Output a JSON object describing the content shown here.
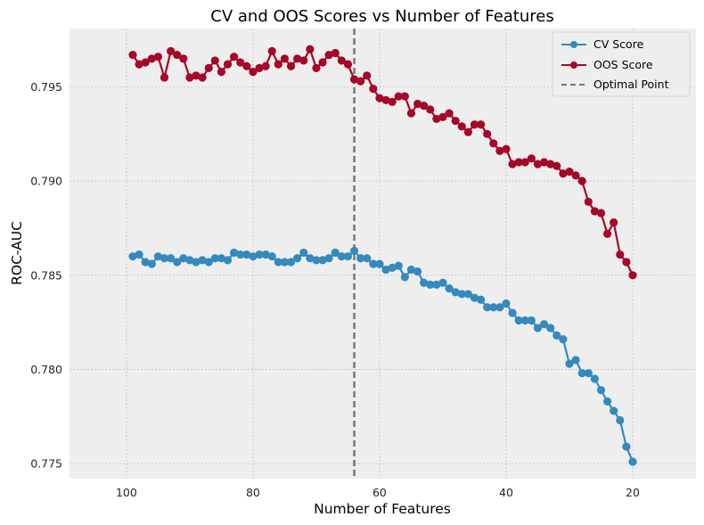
{
  "chart_data": {
    "type": "line",
    "title": "CV and OOS Scores vs Number of Features",
    "xlabel": "Number of Features",
    "ylabel": "ROC-AUC",
    "xlim": [
      109,
      10
    ],
    "ylim": [
      0.7742,
      0.7981
    ],
    "xticks": [
      100,
      80,
      60,
      40,
      20
    ],
    "yticks": [
      0.775,
      0.78,
      0.785,
      0.79,
      0.795
    ],
    "ytick_labels": [
      "0.775",
      "0.780",
      "0.785",
      "0.790",
      "0.795"
    ],
    "xtick_labels": [
      "100",
      "80",
      "60",
      "40",
      "20"
    ],
    "grid": true,
    "legend_position": "top-right",
    "x": [
      99,
      98,
      97,
      96,
      95,
      94,
      93,
      92,
      91,
      90,
      89,
      88,
      87,
      86,
      85,
      84,
      83,
      82,
      81,
      80,
      79,
      78,
      77,
      76,
      75,
      74,
      73,
      72,
      71,
      70,
      69,
      68,
      67,
      66,
      65,
      64,
      63,
      62,
      61,
      60,
      59,
      58,
      57,
      56,
      55,
      54,
      53,
      52,
      51,
      50,
      49,
      48,
      47,
      46,
      45,
      44,
      43,
      42,
      41,
      40,
      39,
      38,
      37,
      36,
      35,
      34,
      33,
      32,
      31,
      30,
      29,
      28,
      27,
      26,
      25,
      24,
      23,
      22,
      21,
      20
    ],
    "series": [
      {
        "name": "CV Score",
        "color": "#348ABD",
        "values": [
          0.786,
          0.7861,
          0.7857,
          0.7856,
          0.786,
          0.7859,
          0.7859,
          0.7857,
          0.7859,
          0.7858,
          0.7857,
          0.7858,
          0.7857,
          0.7859,
          0.7859,
          0.7858,
          0.7862,
          0.7861,
          0.7861,
          0.786,
          0.7861,
          0.7861,
          0.786,
          0.7857,
          0.7857,
          0.7857,
          0.7859,
          0.7862,
          0.7859,
          0.7858,
          0.7858,
          0.7859,
          0.7862,
          0.786,
          0.786,
          0.7863,
          0.7859,
          0.7859,
          0.7856,
          0.7856,
          0.7853,
          0.7854,
          0.7855,
          0.7849,
          0.7853,
          0.7852,
          0.7846,
          0.7845,
          0.7845,
          0.7846,
          0.7843,
          0.7841,
          0.784,
          0.784,
          0.7838,
          0.7837,
          0.7833,
          0.7833,
          0.7833,
          0.7835,
          0.783,
          0.7826,
          0.7826,
          0.7826,
          0.7822,
          0.7824,
          0.7822,
          0.7818,
          0.7816,
          0.7803,
          0.7805,
          0.7798,
          0.7798,
          0.7795,
          0.7789,
          0.7783,
          0.7778,
          0.7773,
          0.7759,
          0.7751
        ]
      },
      {
        "name": "OOS Score",
        "color": "#A60628",
        "values": [
          0.7967,
          0.7962,
          0.7963,
          0.7965,
          0.7966,
          0.7955,
          0.7969,
          0.7967,
          0.7965,
          0.7955,
          0.7956,
          0.7955,
          0.796,
          0.7964,
          0.7958,
          0.7962,
          0.7966,
          0.7963,
          0.7961,
          0.7958,
          0.796,
          0.7961,
          0.7969,
          0.7962,
          0.7965,
          0.7961,
          0.7965,
          0.7964,
          0.797,
          0.796,
          0.7963,
          0.7967,
          0.7968,
          0.7964,
          0.7962,
          0.7954,
          0.7953,
          0.7956,
          0.7949,
          0.7944,
          0.7943,
          0.7942,
          0.7945,
          0.7945,
          0.7936,
          0.7941,
          0.794,
          0.7938,
          0.7933,
          0.7934,
          0.7936,
          0.7932,
          0.7929,
          0.7926,
          0.793,
          0.793,
          0.7925,
          0.792,
          0.7916,
          0.7917,
          0.7909,
          0.791,
          0.791,
          0.7912,
          0.7909,
          0.791,
          0.7909,
          0.7908,
          0.7904,
          0.7905,
          0.7903,
          0.79,
          0.7889,
          0.7884,
          0.7883,
          0.7872,
          0.7878,
          0.7861,
          0.7857,
          0.785
        ]
      }
    ],
    "vline": {
      "x": 64,
      "name": "Optimal Point",
      "color": "#777777",
      "style": "dashed"
    }
  }
}
